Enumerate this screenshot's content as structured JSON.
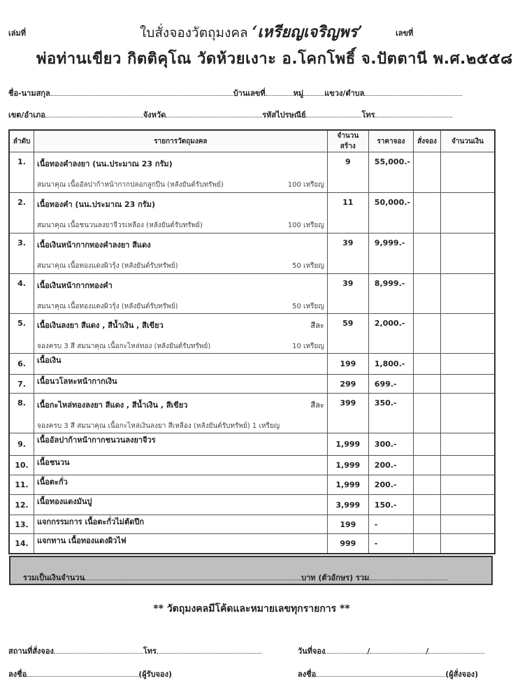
{
  "header": {
    "book_no_label": "เล่มที่",
    "title_prefix": "ใบสั่งจองวัตถุมงคล",
    "title_name": "‘เหรียญเจริญพร’",
    "number_label": "เลขที่",
    "subtitle": "พ่อท่านเขียว กิตติคุโณ วัดห้วยเงาะ อ.โคกโพธิ์ จ.ปัตตานี พ.ศ.๒๕๕๘"
  },
  "fields": {
    "name": "ชื่อ-นามสกุล",
    "house_no": "บ้านเลขที่",
    "moo": "หมู่",
    "subdistrict": "แขวง/ตำบล",
    "district": "เขต/อำเภอ",
    "province": "จังหวัด",
    "postcode": "รหัสไปรษณีย์",
    "phone": "โทร"
  },
  "table": {
    "columns": [
      "ลำดับ",
      "รายการวัตถุมงคล",
      "จำนวนสร้าง",
      "ราคาจอง",
      "สั่งจอง",
      "จำนวนเงิน"
    ],
    "rows": [
      {
        "no": "1.",
        "item": "เนื้อทองคำลงยา (นน.ประมาณ 23 กรัม)",
        "note": "สมนาคุณ เนื้ออัลปาก้าหน้ากากปลอกลูกปืน (หลังยันต์รับทรัพย์)",
        "note_qty": "100 เหรียญ",
        "qty": "9",
        "price": "55,000.-"
      },
      {
        "no": "2.",
        "item": "เนื้อทองคำ (นน.ประมาณ 23 กรัม)",
        "note": "สมนาคุณ เนื้อชนวนลงยาจีวรเหลือง (หลังยันต์รับทรัพย์)",
        "note_qty": "100 เหรียญ",
        "qty": "11",
        "price": "50,000.-"
      },
      {
        "no": "3.",
        "item": "เนื้อเงินหน้ากากทองคำลงยา สีแดง",
        "note": "สมนาคุณ เนื้อทองแดงผิวรุ้ง (หลังยันต์รับทรัพย์)",
        "note_qty": "50 เหรียญ",
        "qty": "39",
        "price": "9,999.-"
      },
      {
        "no": "4.",
        "item": "เนื้อเงินหน้ากากทองคำ",
        "note": "สมนาคุณ เนื้อทองแดงผิวรุ้ง (หลังยันต์รับทรัพย์)",
        "note_qty": "50 เหรียญ",
        "qty": "39",
        "price": "8,999.-"
      },
      {
        "no": "5.",
        "item": "เนื้อเงินลงยา สีแดง , สีน้ำเงิน , สีเขียว",
        "item_suffix": "สีละ",
        "note": "จองครบ 3 สี สมนาคุณ เนื้อกะไหล่ทอง (หลังยันต์รับทรัพย์)",
        "note_qty": "10 เหรียญ",
        "qty": "59",
        "price": "2,000.-"
      },
      {
        "no": "6.",
        "item": "เนื้อเงิน",
        "qty": "199",
        "price": "1,800.-"
      },
      {
        "no": "7.",
        "item": "เนื้อนวโลหะหน้ากากเงิน",
        "qty": "299",
        "price": "699.-"
      },
      {
        "no": "8.",
        "item": "เนื้อกะไหล่ทองลงยา สีแดง , สีน้ำเงิน , สีเขียว",
        "item_suffix": "สีละ",
        "note": "จองครบ 3 สี สมนาคุณ เนื้อกะไหล่เงินลงยา สีเหลือง (หลังยันต์รับทรัพย์) 1 เหรียญ",
        "qty": "399",
        "price": "350.-"
      },
      {
        "no": "9.",
        "item": "เนื้ออัลปาก้าหน้ากากชนวนลงยาจีวร",
        "qty": "1,999",
        "price": "300.-"
      },
      {
        "no": "10.",
        "item": "เนื้อชนวน",
        "qty": "1,999",
        "price": "200.-"
      },
      {
        "no": "11.",
        "item": "เนื้อตะกั่ว",
        "qty": "1,999",
        "price": "200.-"
      },
      {
        "no": "12.",
        "item": "เนื้อทองแดงมันปู",
        "qty": "3,999",
        "price": "150.-"
      },
      {
        "no": "13.",
        "item": "แจกกรรมการ เนื้อตะกั่วไม่ตัดปีก",
        "qty": "199",
        "price": "-"
      },
      {
        "no": "14.",
        "item": "แจกทาน เนื้อทองแดงผิวไฟ",
        "qty": "999",
        "price": "-"
      }
    ]
  },
  "total": {
    "amount_label": "รวมเป็นเงินจำนวน",
    "baht_text_label": "บาท (ตัวอักษร) รวม"
  },
  "note": "** วัตถุมงคลมีโค้ดและหมายเลขทุกรายการ **",
  "footer": {
    "place_label": "สถานที่สั่งจอง",
    "phone_label": "โทร",
    "date_label": "วันที่จอง",
    "sign_label_left": "ลงชื่อ",
    "receiver": "(ผู้รับจอง)",
    "sign_label_right": "ลงชื่อ",
    "orderer": "(ผู้สั่งจอง)"
  }
}
